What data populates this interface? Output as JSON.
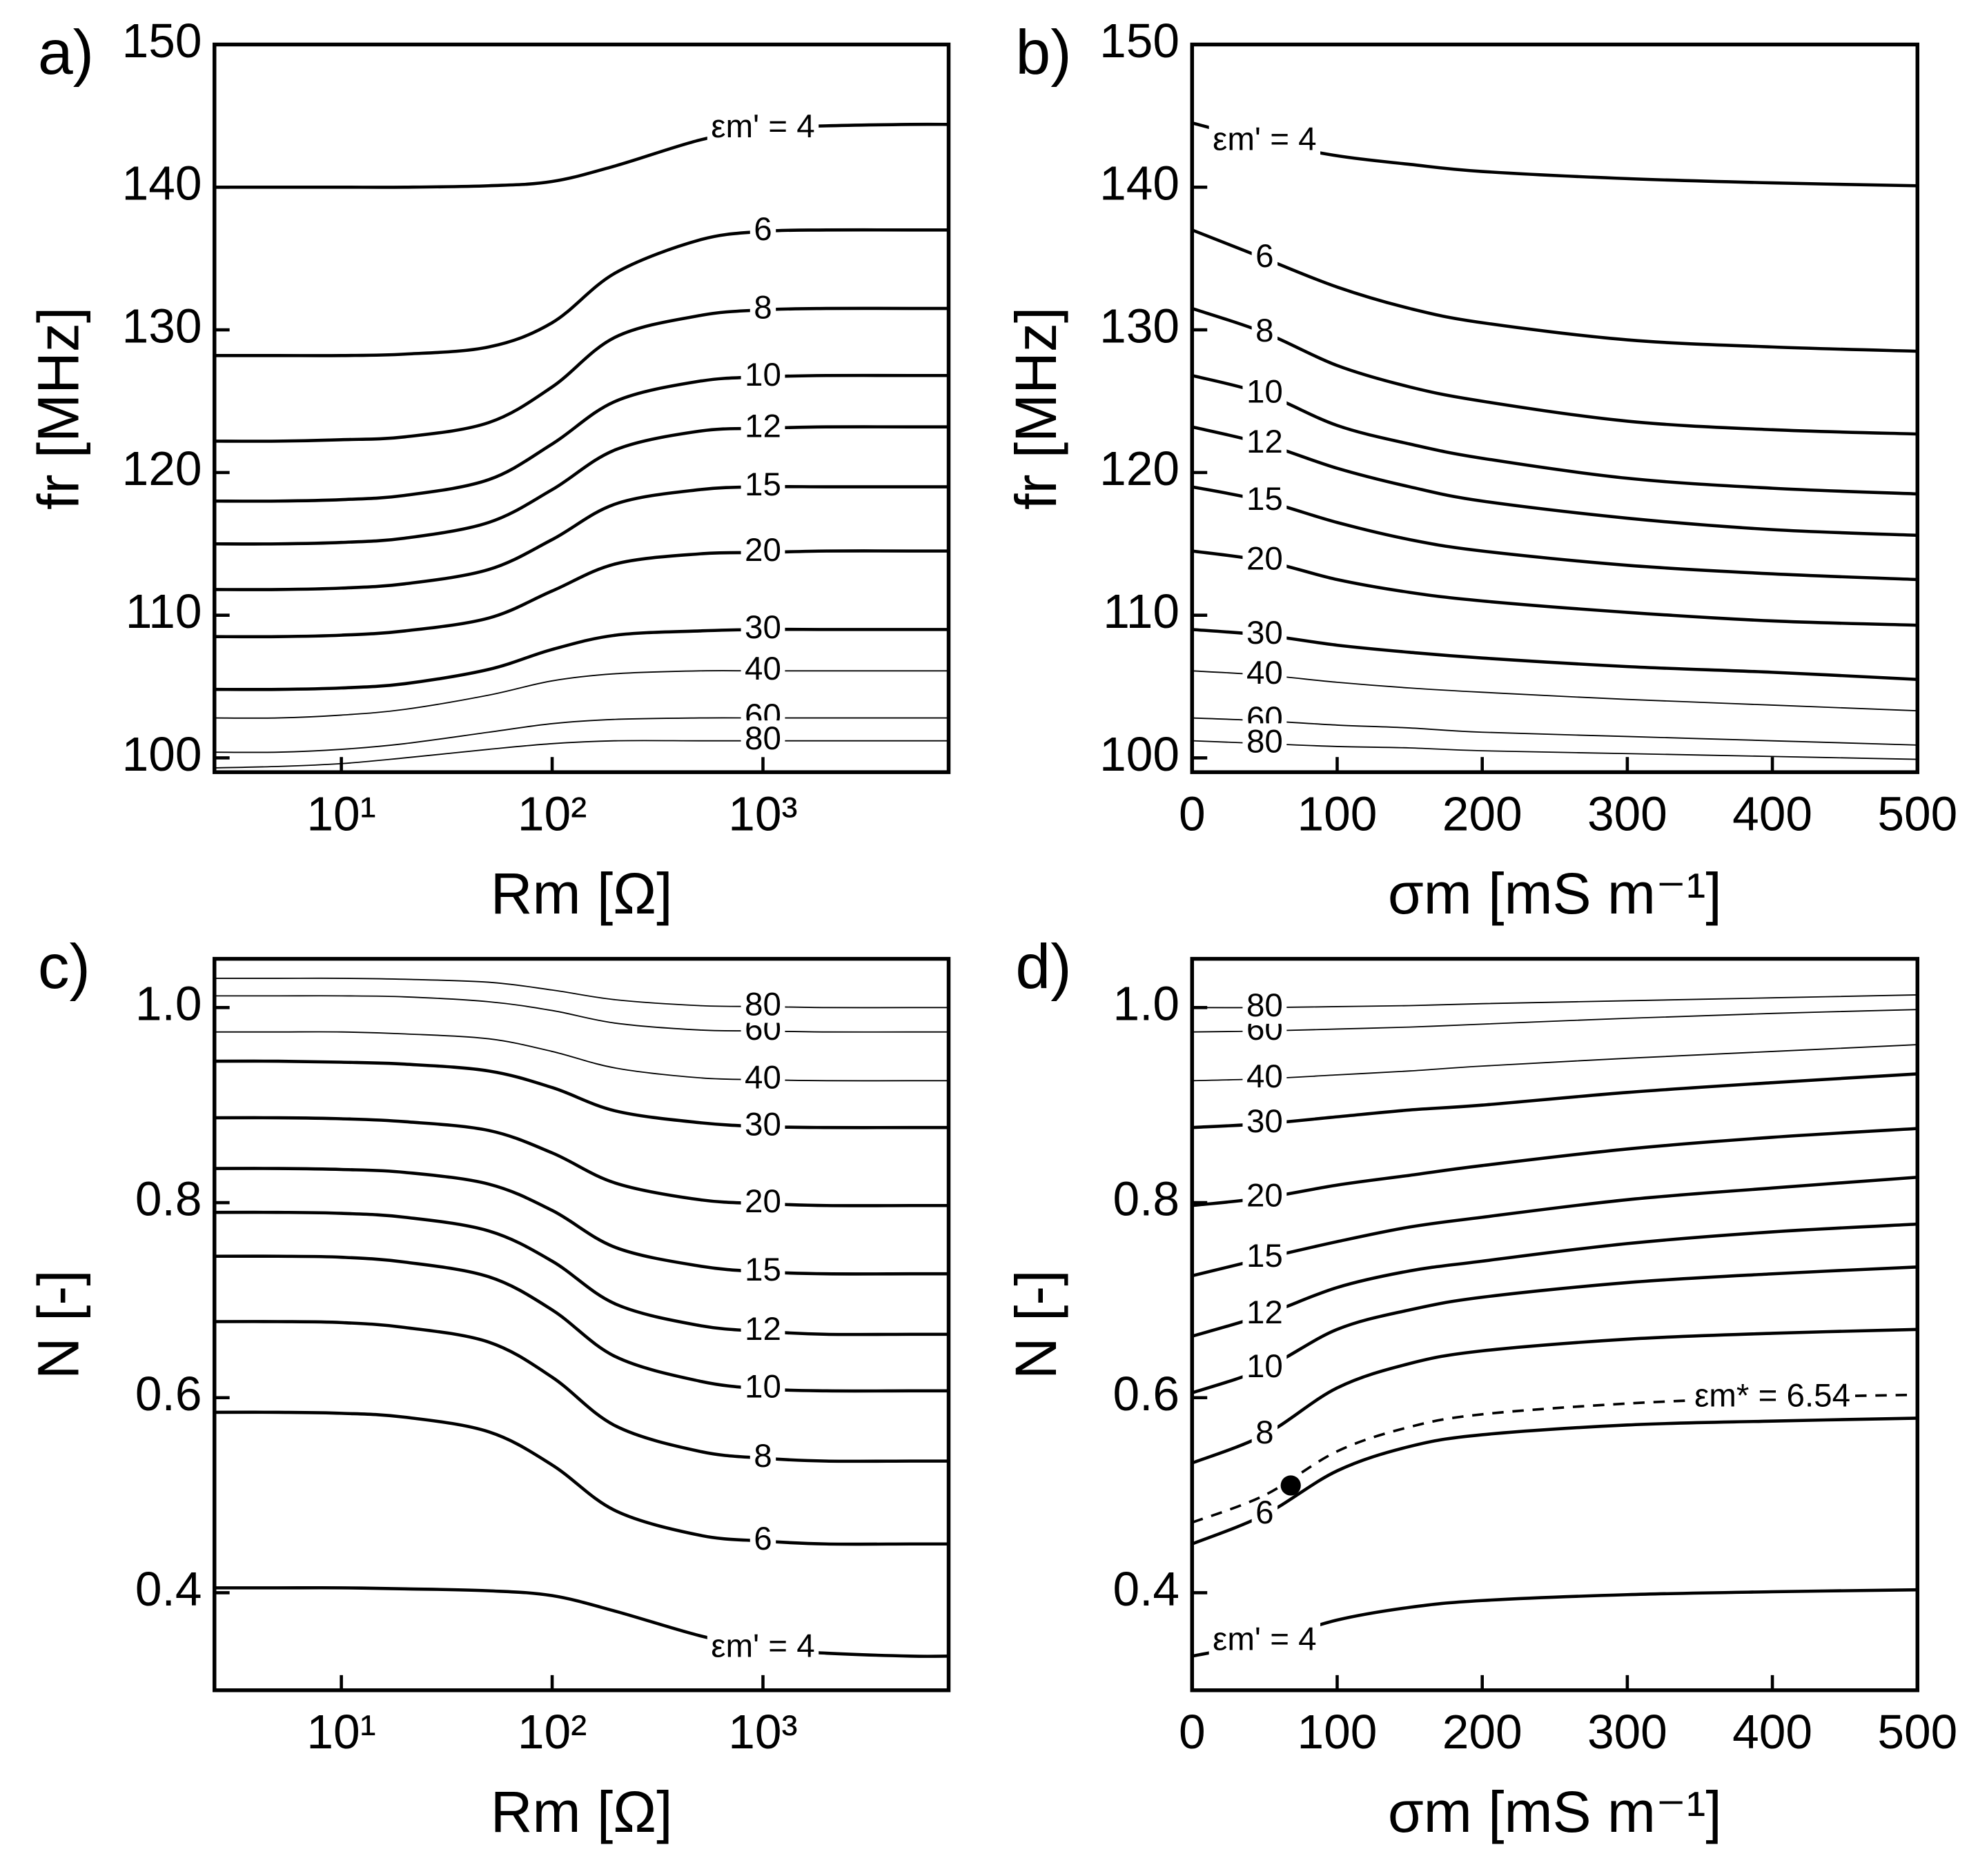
{
  "chart_data": [
    {
      "type": "line",
      "panel": "a)",
      "xlabel": "Rm [Ω]",
      "ylabel": "fr [MHz]",
      "xscale": "log",
      "xlim": [
        2.5,
        7600
      ],
      "xticks": [
        {
          "value": 10,
          "label": "10¹"
        },
        {
          "value": 100,
          "label": "10²"
        },
        {
          "value": 1000,
          "label": "10³"
        }
      ],
      "ylim": [
        99,
        150
      ],
      "yticks": [
        100,
        110,
        120,
        130,
        140,
        150
      ],
      "x": [
        2.5,
        5,
        10,
        20,
        50,
        100,
        200,
        500,
        1000,
        2000,
        5000,
        7600
      ],
      "series": [
        {
          "name": "εm' = 4",
          "color": "#000000",
          "linewidth": 2.5,
          "values": [
            140,
            140,
            140,
            140,
            140.1,
            140.4,
            141.5,
            143.3,
            144.1,
            144.3,
            144.4,
            144.4
          ]
        },
        {
          "name": "6",
          "color": "#000000",
          "linewidth": 2.5,
          "values": [
            128.2,
            128.2,
            128.2,
            128.3,
            128.8,
            130.5,
            134,
            136.3,
            136.9,
            137,
            137,
            137
          ]
        },
        {
          "name": "8",
          "color": "#000000",
          "linewidth": 2.5,
          "values": [
            122.2,
            122.2,
            122.3,
            122.5,
            123.5,
            126,
            129.5,
            131,
            131.4,
            131.5,
            131.5,
            131.5
          ]
        },
        {
          "name": "10",
          "color": "#000000",
          "linewidth": 2.5,
          "values": [
            118,
            118,
            118.1,
            118.4,
            119.5,
            122,
            125,
            126.4,
            126.7,
            126.8,
            126.8,
            126.8
          ]
        },
        {
          "name": "12",
          "color": "#000000",
          "linewidth": 2.5,
          "values": [
            115,
            115,
            115.1,
            115.4,
            116.5,
            118.8,
            121.6,
            122.9,
            123.1,
            123.2,
            123.2,
            123.2
          ]
        },
        {
          "name": "15",
          "color": "#000000",
          "linewidth": 2.5,
          "values": [
            111.8,
            111.8,
            111.9,
            112.2,
            113.2,
            115.3,
            117.8,
            118.8,
            119,
            119,
            119,
            119
          ]
        },
        {
          "name": "20",
          "color": "#000000",
          "linewidth": 2.5,
          "values": [
            108.5,
            108.5,
            108.6,
            108.9,
            109.8,
            111.7,
            113.6,
            114.3,
            114.4,
            114.5,
            114.5,
            114.5
          ]
        },
        {
          "name": "30",
          "color": "#000000",
          "linewidth": 2.5,
          "values": [
            104.8,
            104.8,
            104.9,
            105.2,
            106.2,
            107.6,
            108.6,
            108.9,
            109,
            109,
            109,
            109
          ]
        },
        {
          "name": "40",
          "color": "#000000",
          "linewidth": 1,
          "values": [
            102.8,
            102.8,
            103,
            103.4,
            104.4,
            105.4,
            105.9,
            106.1,
            106.1,
            106.1,
            106.1,
            106.1
          ]
        },
        {
          "name": "60",
          "color": "#000000",
          "linewidth": 1,
          "values": [
            100.4,
            100.4,
            100.6,
            101,
            101.8,
            102.4,
            102.7,
            102.8,
            102.8,
            102.8,
            102.8,
            102.8
          ]
        },
        {
          "name": "80",
          "color": "#000000",
          "linewidth": 1,
          "values": [
            99.3,
            99.4,
            99.6,
            100,
            100.6,
            101,
            101.2,
            101.2,
            101.2,
            101.2,
            101.2,
            101.2
          ]
        }
      ]
    },
    {
      "type": "line",
      "panel": "b)",
      "xlabel": "σm [mS m⁻¹]",
      "ylabel": "fr [MHz]",
      "xlim": [
        0,
        500
      ],
      "xticks": [
        0,
        100,
        200,
        300,
        400,
        500
      ],
      "ylim": [
        99,
        150
      ],
      "yticks": [
        100,
        110,
        120,
        130,
        140,
        150
      ],
      "x": [
        0,
        50,
        100,
        150,
        200,
        300,
        400,
        500
      ],
      "series": [
        {
          "name": "εm' = 4",
          "color": "#000000",
          "linewidth": 2.5,
          "values": [
            144.5,
            143.2,
            142.2,
            141.6,
            141.1,
            140.6,
            140.3,
            140.1
          ]
        },
        {
          "name": "6",
          "color": "#000000",
          "linewidth": 2.5,
          "values": [
            137,
            135,
            133,
            131.5,
            130.5,
            129.3,
            128.8,
            128.5
          ]
        },
        {
          "name": "8",
          "color": "#000000",
          "linewidth": 2.5,
          "values": [
            131.5,
            129.8,
            127.5,
            126,
            125,
            123.6,
            123,
            122.7
          ]
        },
        {
          "name": "10",
          "color": "#000000",
          "linewidth": 2.5,
          "values": [
            126.8,
            125.5,
            123.3,
            122,
            121,
            119.6,
            118.9,
            118.5
          ]
        },
        {
          "name": "12",
          "color": "#000000",
          "linewidth": 2.5,
          "values": [
            123.2,
            122,
            120.3,
            119,
            118,
            116.8,
            116,
            115.6
          ]
        },
        {
          "name": "15",
          "color": "#000000",
          "linewidth": 2.5,
          "values": [
            119,
            118,
            116.5,
            115.3,
            114.5,
            113.5,
            112.9,
            112.5
          ]
        },
        {
          "name": "20",
          "color": "#000000",
          "linewidth": 2.5,
          "values": [
            114.5,
            113.8,
            112.5,
            111.6,
            111,
            110.2,
            109.6,
            109.3
          ]
        },
        {
          "name": "30",
          "color": "#000000",
          "linewidth": 2.5,
          "values": [
            109,
            108.6,
            107.9,
            107.4,
            107,
            106.4,
            106,
            105.5
          ]
        },
        {
          "name": "40",
          "color": "#000000",
          "linewidth": 1,
          "values": [
            106.1,
            105.8,
            105.3,
            104.9,
            104.6,
            104.1,
            103.7,
            103.3
          ]
        },
        {
          "name": "60",
          "color": "#000000",
          "linewidth": 1,
          "values": [
            102.8,
            102.6,
            102.3,
            102.1,
            101.8,
            101.5,
            101.2,
            100.9
          ]
        },
        {
          "name": "80",
          "color": "#000000",
          "linewidth": 1,
          "values": [
            101.2,
            101,
            100.8,
            100.7,
            100.5,
            100.3,
            100.1,
            99.9
          ]
        }
      ]
    },
    {
      "type": "line",
      "panel": "c)",
      "xlabel": "Rm [Ω]",
      "ylabel": "N [-]",
      "xscale": "log",
      "xlim": [
        2.5,
        7600
      ],
      "xticks": [
        {
          "value": 10,
          "label": "10¹"
        },
        {
          "value": 100,
          "label": "10²"
        },
        {
          "value": 1000,
          "label": "10³"
        }
      ],
      "ylim": [
        0.3,
        1.05
      ],
      "yticks": [
        0.4,
        0.6,
        0.8,
        {
          "value": 1,
          "label": "1.0"
        }
      ],
      "x": [
        2.5,
        5,
        10,
        20,
        50,
        100,
        200,
        500,
        1000,
        2000,
        5000,
        7600
      ],
      "series": [
        {
          "name": "εm' = 4",
          "color": "#000000",
          "linewidth": 2.5,
          "values": [
            0.405,
            0.405,
            0.405,
            0.404,
            0.402,
            0.397,
            0.381,
            0.356,
            0.343,
            0.338,
            0.335,
            0.335
          ]
        },
        {
          "name": "6",
          "color": "#000000",
          "linewidth": 2.5,
          "values": [
            0.585,
            0.585,
            0.584,
            0.58,
            0.565,
            0.531,
            0.484,
            0.459,
            0.453,
            0.45,
            0.45,
            0.45
          ]
        },
        {
          "name": "8",
          "color": "#000000",
          "linewidth": 2.5,
          "values": [
            0.678,
            0.678,
            0.677,
            0.672,
            0.657,
            0.621,
            0.571,
            0.545,
            0.538,
            0.535,
            0.535,
            0.535
          ]
        },
        {
          "name": "10",
          "color": "#000000",
          "linewidth": 2.5,
          "values": [
            0.745,
            0.745,
            0.744,
            0.739,
            0.724,
            0.69,
            0.642,
            0.617,
            0.609,
            0.607,
            0.607,
            0.607
          ]
        },
        {
          "name": "12",
          "color": "#000000",
          "linewidth": 2.5,
          "values": [
            0.79,
            0.79,
            0.789,
            0.785,
            0.771,
            0.74,
            0.696,
            0.674,
            0.668,
            0.665,
            0.665,
            0.665
          ]
        },
        {
          "name": "15",
          "color": "#000000",
          "linewidth": 2.5,
          "values": [
            0.835,
            0.835,
            0.834,
            0.831,
            0.819,
            0.792,
            0.754,
            0.735,
            0.729,
            0.727,
            0.727,
            0.727
          ]
        },
        {
          "name": "20",
          "color": "#000000",
          "linewidth": 2.5,
          "values": [
            0.887,
            0.887,
            0.886,
            0.883,
            0.874,
            0.851,
            0.82,
            0.803,
            0.799,
            0.797,
            0.797,
            0.797
          ]
        },
        {
          "name": "30",
          "color": "#000000",
          "linewidth": 2.5,
          "values": [
            0.945,
            0.945,
            0.944,
            0.942,
            0.935,
            0.918,
            0.894,
            0.882,
            0.878,
            0.877,
            0.877,
            0.877
          ]
        },
        {
          "name": "40",
          "color": "#000000",
          "linewidth": 1,
          "values": [
            0.975,
            0.975,
            0.975,
            0.973,
            0.968,
            0.955,
            0.938,
            0.928,
            0.926,
            0.925,
            0.925,
            0.925
          ]
        },
        {
          "name": "60",
          "color": "#000000",
          "linewidth": 1,
          "values": [
            1.012,
            1.012,
            1.012,
            1.011,
            1.006,
            0.997,
            0.984,
            0.977,
            0.976,
            0.975,
            0.975,
            0.975
          ]
        },
        {
          "name": "80",
          "color": "#000000",
          "linewidth": 1,
          "values": [
            1.03,
            1.03,
            1.03,
            1.029,
            1.026,
            1.018,
            1.008,
            1.002,
            1.001,
            1.0,
            1.0,
            1.0
          ]
        }
      ]
    },
    {
      "type": "line",
      "panel": "d)",
      "xlabel": "σm [mS m⁻¹]",
      "ylabel": "N [-]",
      "xlim": [
        0,
        500
      ],
      "xticks": [
        0,
        100,
        200,
        300,
        400,
        500
      ],
      "ylim": [
        0.3,
        1.05
      ],
      "yticks": [
        0.4,
        0.6,
        0.8,
        {
          "value": 1,
          "label": "1.0"
        }
      ],
      "x": [
        0,
        50,
        100,
        150,
        200,
        300,
        400,
        500
      ],
      "series": [
        {
          "name": "εm' = 4",
          "color": "#000000",
          "linewidth": 2.5,
          "values": [
            0.335,
            0.35,
            0.372,
            0.385,
            0.392,
            0.398,
            0.401,
            0.403
          ]
        },
        {
          "name": "6",
          "color": "#000000",
          "linewidth": 2.5,
          "values": [
            0.45,
            0.48,
            0.525,
            0.55,
            0.562,
            0.572,
            0.576,
            0.579
          ]
        },
        {
          "name": "8",
          "color": "#000000",
          "linewidth": 2.5,
          "values": [
            0.533,
            0.562,
            0.61,
            0.635,
            0.648,
            0.66,
            0.666,
            0.67
          ]
        },
        {
          "name": "10",
          "color": "#000000",
          "linewidth": 2.5,
          "values": [
            0.605,
            0.63,
            0.67,
            0.69,
            0.703,
            0.718,
            0.727,
            0.734
          ]
        },
        {
          "name": "12",
          "color": "#000000",
          "linewidth": 2.5,
          "values": [
            0.663,
            0.685,
            0.713,
            0.73,
            0.74,
            0.758,
            0.77,
            0.778
          ]
        },
        {
          "name": "15",
          "color": "#000000",
          "linewidth": 2.5,
          "values": [
            0.725,
            0.743,
            0.76,
            0.775,
            0.785,
            0.803,
            0.815,
            0.826
          ]
        },
        {
          "name": "20",
          "color": "#000000",
          "linewidth": 2.5,
          "values": [
            0.797,
            0.805,
            0.818,
            0.828,
            0.838,
            0.855,
            0.867,
            0.876
          ]
        },
        {
          "name": "30",
          "color": "#000000",
          "linewidth": 2.5,
          "values": [
            0.877,
            0.881,
            0.888,
            0.895,
            0.9,
            0.913,
            0.923,
            0.932
          ]
        },
        {
          "name": "40",
          "color": "#000000",
          "linewidth": 1,
          "values": [
            0.925,
            0.927,
            0.931,
            0.935,
            0.94,
            0.948,
            0.955,
            0.962
          ]
        },
        {
          "name": "60",
          "color": "#000000",
          "linewidth": 1,
          "values": [
            0.975,
            0.976,
            0.978,
            0.98,
            0.983,
            0.989,
            0.994,
            0.998
          ]
        },
        {
          "name": "80",
          "color": "#000000",
          "linewidth": 1,
          "values": [
            1.0,
            1.0,
            1.001,
            1.002,
            1.004,
            1.007,
            1.01,
            1.013
          ]
        },
        {
          "name": "εm* = 6.54",
          "color": "#000000",
          "linewidth": 2,
          "dash": true,
          "values": [
            0.472,
            0.5,
            0.545,
            0.57,
            0.583,
            0.594,
            0.6,
            0.603
          ]
        }
      ],
      "markers": [
        {
          "x": 68,
          "y": 0.51
        }
      ]
    }
  ]
}
